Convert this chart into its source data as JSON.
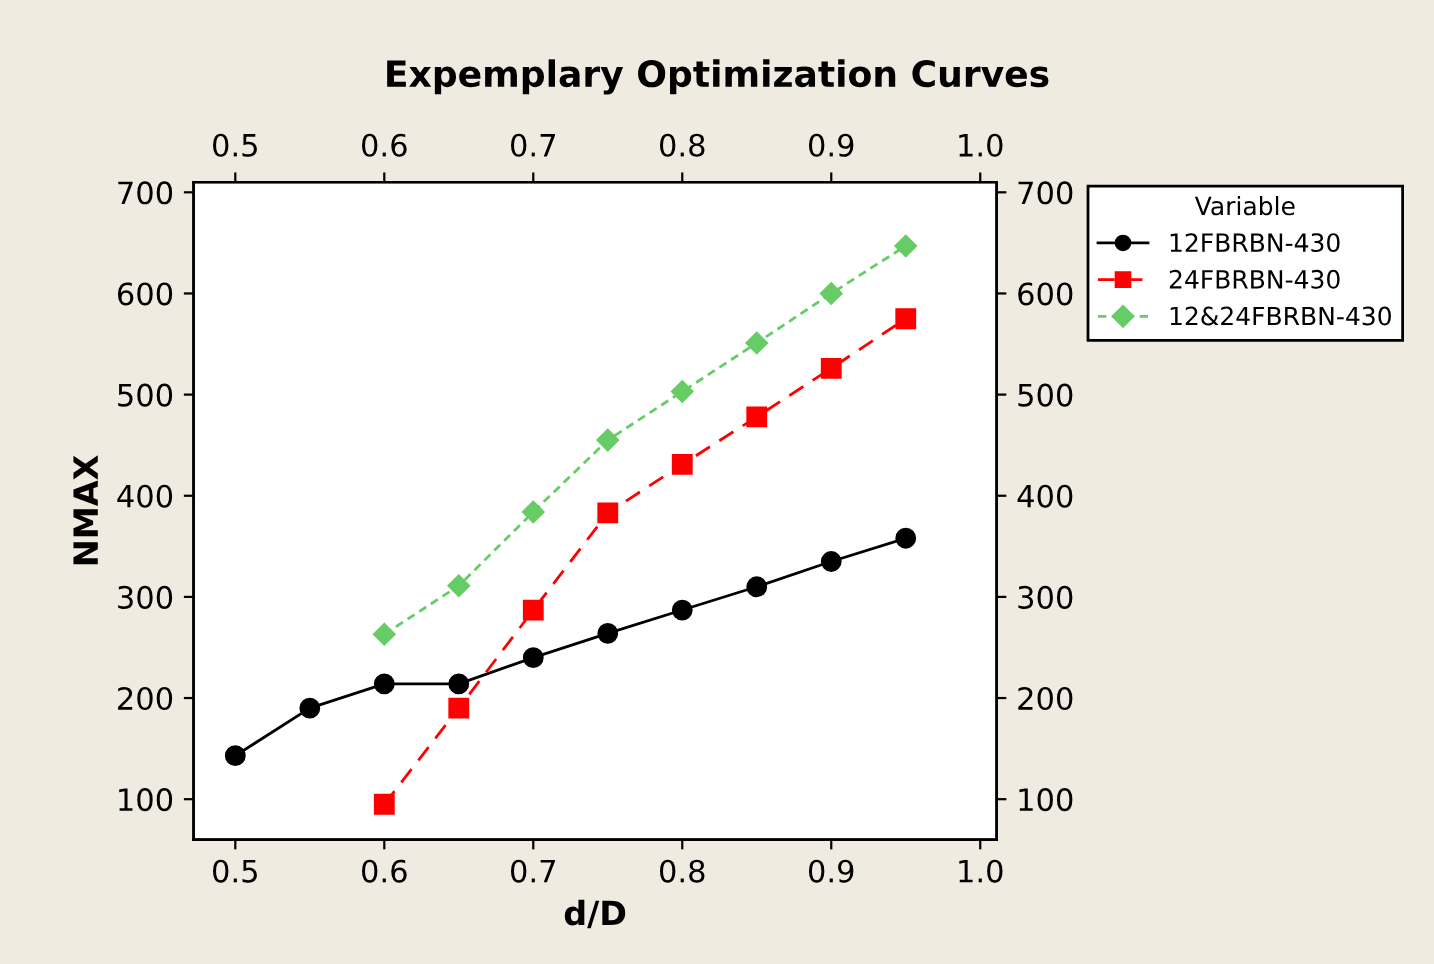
{
  "chart_data": {
    "type": "line",
    "title": "Expemplary Optimization Curves",
    "xlabel": "d/D",
    "ylabel": "NMAX",
    "legend_title": "Variable",
    "legend": "right",
    "xlim": [
      0.472,
      1.011
    ],
    "xticks": [
      0.5,
      0.6,
      0.7,
      0.8,
      0.9,
      {
        "value": 1.0,
        "label": "1.0"
      }
    ],
    "x2lim": [
      0.472,
      1.011
    ],
    "x2ticks": [
      0.5,
      0.6,
      0.7,
      0.8,
      0.9,
      {
        "value": 1.0,
        "label": "1.0"
      }
    ],
    "ylim": [
      60,
      710
    ],
    "yticks": [
      100,
      200,
      300,
      400,
      500,
      600,
      700
    ],
    "y2lim": [
      60,
      710
    ],
    "y2ticks": [
      100,
      200,
      300,
      400,
      500,
      600,
      700
    ],
    "grid": false,
    "series": [
      {
        "name": "12FBRBN-430",
        "color": "#000000",
        "marker": "circle",
        "line_style": "solid",
        "x": [
          0.5,
          0.55,
          0.6,
          0.65,
          0.7,
          0.75,
          0.8,
          0.85,
          0.9,
          0.95
        ],
        "values": [
          143,
          190,
          214,
          214,
          240,
          264,
          287,
          310,
          335,
          358
        ]
      },
      {
        "name": "24FBRBN-430",
        "color": "#ff0000",
        "marker": "square",
        "line_style": "dashed",
        "x": [
          0.6,
          0.65,
          0.7,
          0.75,
          0.8,
          0.85,
          0.9,
          0.95
        ],
        "values": [
          95,
          190,
          287,
          383,
          431,
          478,
          526,
          575
        ]
      },
      {
        "name": "12&24FBRBN-430",
        "color": "#66cc66",
        "marker": "diamond",
        "line_style": "dotted",
        "x": [
          0.6,
          0.65,
          0.7,
          0.75,
          0.8,
          0.85,
          0.9,
          0.95
        ],
        "values": [
          263,
          311,
          384,
          455,
          503,
          551,
          600,
          647
        ]
      }
    ]
  }
}
